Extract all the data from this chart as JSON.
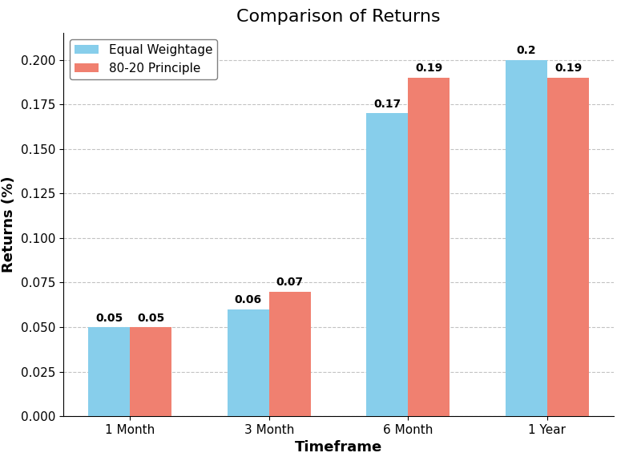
{
  "title": "Comparison of Returns",
  "xlabel": "Timeframe",
  "ylabel": "Returns (%)",
  "categories": [
    "1 Month",
    "3 Month",
    "6 Month",
    "1 Year"
  ],
  "equal_weightage": [
    0.05,
    0.06,
    0.17,
    0.2
  ],
  "principle_8020": [
    0.05,
    0.07,
    0.19,
    0.19
  ],
  "color_equal": "#87CEEB",
  "color_8020": "#F08070",
  "legend_labels": [
    "Equal Weightage",
    "80-20 Principle"
  ],
  "ylim": [
    0,
    0.215
  ],
  "yticks": [
    0.0,
    0.025,
    0.05,
    0.075,
    0.1,
    0.125,
    0.15,
    0.175,
    0.2
  ],
  "bar_width": 0.3,
  "figsize": [
    7.9,
    5.9
  ],
  "dpi": 100,
  "title_fontsize": 16,
  "label_fontsize": 13,
  "tick_fontsize": 11,
  "legend_fontsize": 11,
  "annotation_fontsize": 10,
  "background_color": "#ffffff",
  "grid_color": "#aaaaaa",
  "grid_linestyle": "--",
  "grid_alpha": 0.7
}
